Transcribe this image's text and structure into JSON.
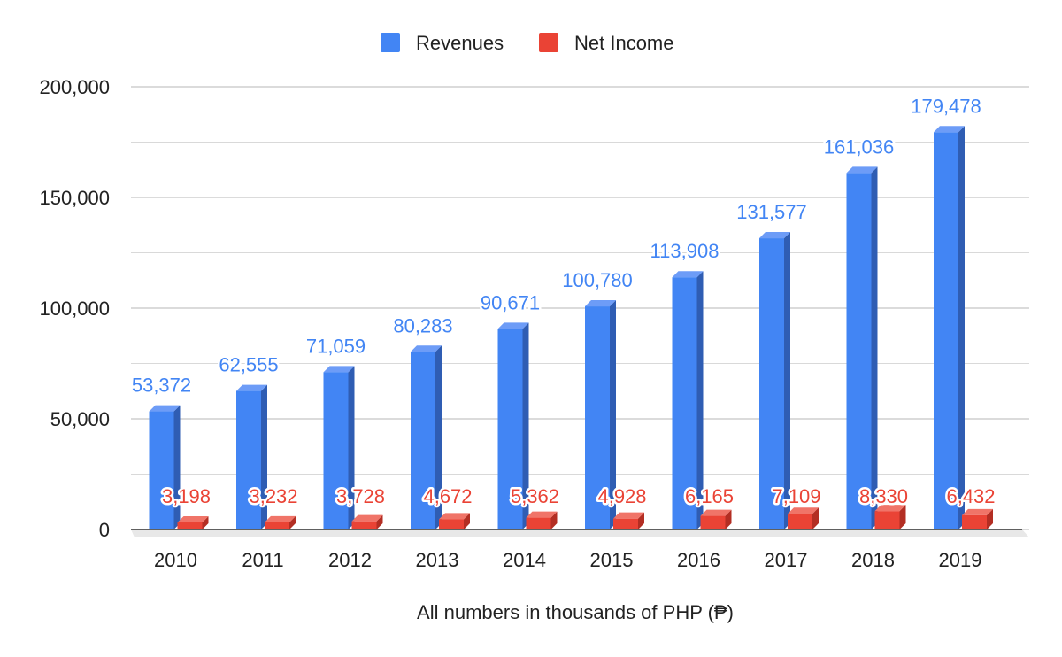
{
  "chart_data": {
    "type": "bar",
    "categories": [
      "2010",
      "2011",
      "2012",
      "2013",
      "2014",
      "2015",
      "2016",
      "2017",
      "2018",
      "2019"
    ],
    "series": [
      {
        "name": "Revenues",
        "color": "#4285f4",
        "values": [
          53372,
          62555,
          71059,
          80283,
          90671,
          100780,
          113908,
          131577,
          161036,
          179478
        ],
        "value_labels": [
          "53,372",
          "62,555",
          "71,059",
          "80,283",
          "90,671",
          "100,780",
          "113,908",
          "131,577",
          "161,036",
          "179,478"
        ]
      },
      {
        "name": "Net Income",
        "color": "#ea4335",
        "values": [
          3198,
          3232,
          3728,
          4672,
          5362,
          4928,
          6165,
          7109,
          8330,
          6432
        ],
        "value_labels": [
          "3,198",
          "3,232",
          "3,728",
          "4,672",
          "5,362",
          "4,928",
          "6,165",
          "7,109",
          "8,330",
          "6,432"
        ]
      }
    ],
    "ylim": [
      0,
      200000
    ],
    "yticks": [
      0,
      50000,
      100000,
      150000,
      200000
    ],
    "ytick_labels": [
      "0",
      "50,000",
      "100,000",
      "150,000",
      "200,000"
    ],
    "xlabel": "All numbers in thousands of PHP (₱)",
    "ylabel": "",
    "title": "",
    "legend_position": "top",
    "grid": true,
    "style": "3d"
  }
}
